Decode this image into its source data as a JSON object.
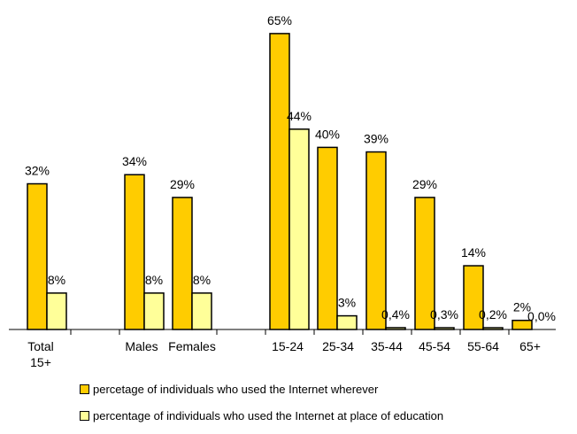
{
  "chart_data": {
    "type": "bar",
    "title": "",
    "xlabel": "",
    "ylabel": "",
    "ylim": [
      0,
      70
    ],
    "grid": false,
    "legend_position": "bottom",
    "categories": [
      "Total 15+",
      "Males",
      "Females",
      "15-24",
      "25-34",
      "35-44",
      "45-54",
      "55-64",
      "65+"
    ],
    "category_lines": [
      [
        "Total",
        "15+"
      ],
      [
        "Males"
      ],
      [
        "Females"
      ],
      [
        "15-24"
      ],
      [
        "25-34"
      ],
      [
        "35-44"
      ],
      [
        "45-54"
      ],
      [
        "55-64"
      ],
      [
        "65+"
      ]
    ],
    "series": [
      {
        "name": "percetage of individuals who used the Internet wherever",
        "color": "#FFCC00",
        "values": [
          32,
          34,
          29,
          65,
          40,
          39,
          29,
          14,
          2
        ],
        "labels": [
          "32%",
          "34%",
          "29%",
          "65%",
          "40%",
          "39%",
          "29%",
          "14%",
          "2%"
        ]
      },
      {
        "name": "percentage of individuals who used the Internet at place of education",
        "color": "#FFFF99",
        "values": [
          8,
          8,
          8,
          44,
          3,
          0.4,
          0.3,
          0.2,
          0
        ],
        "labels": [
          "8%",
          "8%",
          "8%",
          "44%",
          "3%",
          "0,4%",
          "0,3%",
          "0,2%",
          "0,0%"
        ]
      }
    ]
  }
}
